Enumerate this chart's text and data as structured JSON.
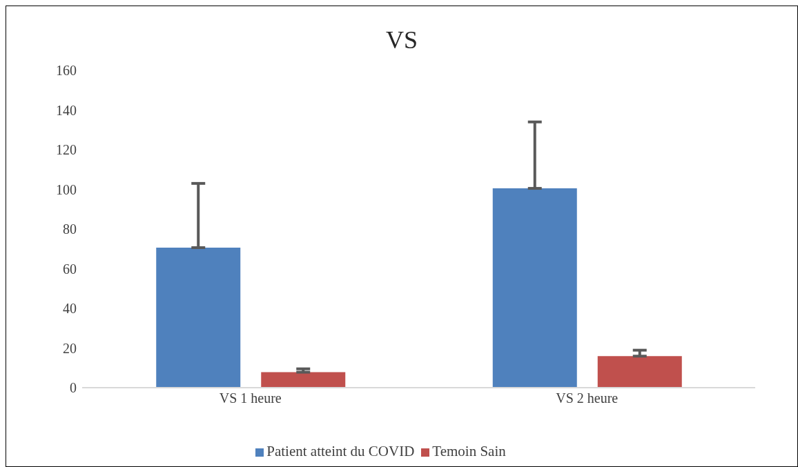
{
  "chart_data": {
    "type": "bar",
    "title": "VS",
    "categories": [
      "VS 1 heure",
      "VS 2 heure"
    ],
    "series": [
      {
        "name": "Patient atteint du COVID",
        "color": "#4f81bd",
        "values": [
          70.6,
          100.5
        ],
        "errors": [
          [
            70.6,
            103
          ],
          [
            100.5,
            134
          ]
        ]
      },
      {
        "name": "Temoin Sain",
        "color": "#c0504d",
        "values": [
          7.8,
          15.9
        ],
        "errors": [
          [
            7.8,
            9.5
          ],
          [
            15.9,
            18.9
          ]
        ]
      }
    ],
    "ylim": [
      0,
      160
    ],
    "yticks": [
      0,
      20,
      40,
      60,
      80,
      100,
      120,
      140,
      160
    ],
    "grid": false,
    "legend": "bottom"
  }
}
